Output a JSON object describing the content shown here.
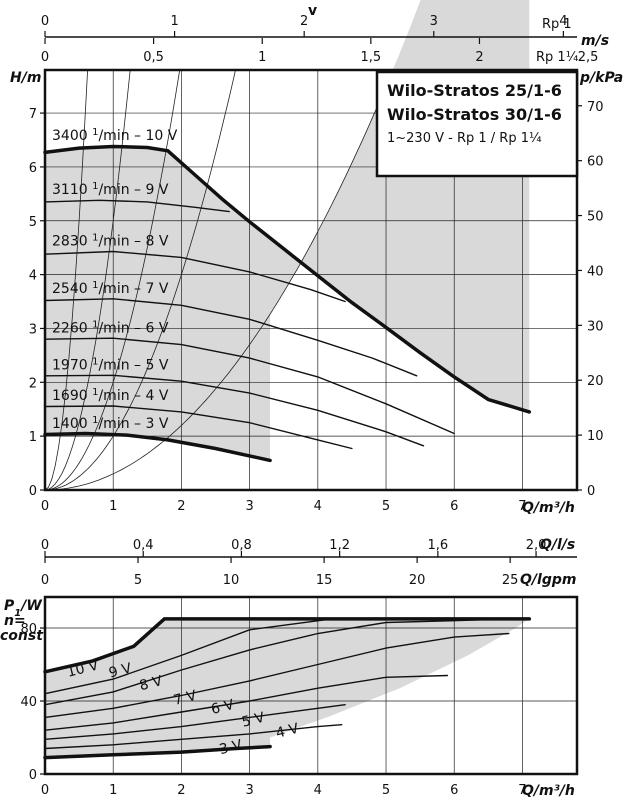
{
  "chart_data": {
    "type": "line",
    "title_box": {
      "line1": "Wilo-Stratos 25/1-6",
      "line2": "Wilo-Stratos 30/1-6",
      "line3": "1~230 V - Rp 1 / Rp 1¼"
    },
    "velocity_scale": {
      "label": "v",
      "rp1_label": "Rp 1",
      "rp1_ticks": [
        "0",
        "1",
        "2",
        "3",
        "4"
      ],
      "rp1_values": [
        0,
        1,
        2,
        3,
        4
      ],
      "rp1_max_flow": 7.6,
      "unit_label": "m/s",
      "rp114_label": "Rp 1¼",
      "rp114_ticks": [
        "0",
        "0,5",
        "1",
        "1,5",
        "2",
        "2,5"
      ],
      "rp114_values": [
        0,
        0.5,
        1,
        1.5,
        2,
        2.5
      ],
      "rp114_max_flow": 9.75
    },
    "head_chart": {
      "ylabel": "H/m",
      "y2label": "p/kPa",
      "xlabel": "Q/m³/h",
      "xlim": [
        0,
        7.8
      ],
      "ylim": [
        0,
        7.8
      ],
      "x_ticks": [
        "0",
        "1",
        "2",
        "3",
        "4",
        "5",
        "6",
        "7"
      ],
      "y_ticks": [
        "0",
        "1",
        "2",
        "3",
        "4",
        "5",
        "6",
        "7"
      ],
      "y2_ticks": [
        "0",
        "10",
        "20",
        "30",
        "40",
        "50",
        "60",
        "70"
      ],
      "y2_ratio_kpa_per_m": 9.81,
      "series": [
        {
          "name": "3400 1/min - 10 V",
          "label_main": "3400 ",
          "label_sup": "1",
          "label_rest": "/min – 10 V",
          "thick": true,
          "points": [
            [
              0,
              6.27
            ],
            [
              0.5,
              6.35
            ],
            [
              1,
              6.38
            ],
            [
              1.5,
              6.36
            ],
            [
              1.8,
              6.3
            ],
            [
              2.2,
              5.85
            ],
            [
              2.6,
              5.4
            ],
            [
              3.0,
              4.98
            ],
            [
              3.5,
              4.48
            ],
            [
              4.0,
              3.98
            ],
            [
              4.5,
              3.48
            ],
            [
              5.0,
              3.02
            ],
            [
              5.5,
              2.55
            ],
            [
              6.0,
              2.1
            ],
            [
              6.5,
              1.68
            ],
            [
              7.1,
              1.45
            ]
          ]
        },
        {
          "name": "3110 1/min - 9 V",
          "label_main": "3110 ",
          "label_sup": "1",
          "label_rest": "/min – 9 V",
          "thick": false,
          "points": [
            [
              0,
              5.35
            ],
            [
              0.8,
              5.38
            ],
            [
              1.5,
              5.35
            ],
            [
              2.2,
              5.25
            ],
            [
              2.7,
              5.17
            ]
          ]
        },
        {
          "name": "2830 1/min - 8 V",
          "label_main": "2830 ",
          "label_sup": "1",
          "label_rest": "/min – 8 V",
          "thick": false,
          "points": [
            [
              0,
              4.38
            ],
            [
              1,
              4.43
            ],
            [
              2,
              4.32
            ],
            [
              3,
              4.05
            ],
            [
              3.9,
              3.72
            ],
            [
              4.4,
              3.5
            ]
          ]
        },
        {
          "name": "2540 1/min - 7 V",
          "label_main": "2540 ",
          "label_sup": "1",
          "label_rest": "/min – 7 V",
          "thick": false,
          "points": [
            [
              0,
              3.52
            ],
            [
              1,
              3.55
            ],
            [
              2,
              3.43
            ],
            [
              3,
              3.17
            ],
            [
              4,
              2.78
            ],
            [
              4.8,
              2.45
            ],
            [
              5.45,
              2.12
            ]
          ]
        },
        {
          "name": "2260 1/min - 6 V",
          "label_main": "2260 ",
          "label_sup": "1",
          "label_rest": "/min – 6 V",
          "thick": false,
          "points": [
            [
              0,
              2.8
            ],
            [
              1,
              2.82
            ],
            [
              2,
              2.7
            ],
            [
              3,
              2.45
            ],
            [
              4,
              2.1
            ],
            [
              5,
              1.6
            ],
            [
              6,
              1.05
            ]
          ]
        },
        {
          "name": "1970 1/min - 5 V",
          "label_main": "1970 ",
          "label_sup": "1",
          "label_rest": "/min – 5 V",
          "thick": false,
          "points": [
            [
              0,
              2.12
            ],
            [
              1,
              2.13
            ],
            [
              2,
              2.02
            ],
            [
              3,
              1.8
            ],
            [
              4,
              1.48
            ],
            [
              5,
              1.08
            ],
            [
              5.55,
              0.82
            ]
          ]
        },
        {
          "name": "1690 1/min - 4 V",
          "label_main": "1690 ",
          "label_sup": "1",
          "label_rest": "/min – 4 V",
          "thick": false,
          "points": [
            [
              0,
              1.55
            ],
            [
              1,
              1.56
            ],
            [
              2,
              1.45
            ],
            [
              3,
              1.25
            ],
            [
              4,
              0.93
            ],
            [
              4.5,
              0.77
            ]
          ]
        },
        {
          "name": "1400 1/min - 3 V",
          "label_main": "1400 ",
          "label_sup": "1",
          "label_rest": "/min – 3 V",
          "thick": true,
          "points": [
            [
              0,
              1.03
            ],
            [
              0.6,
              1.05
            ],
            [
              1.2,
              1.02
            ],
            [
              1.8,
              0.93
            ],
            [
              2.5,
              0.77
            ],
            [
              3.3,
              0.55
            ]
          ]
        }
      ],
      "system_curve_coefficients": [
        0.3,
        1.0,
        2.0,
        5.0,
        20.0
      ],
      "lower_bound_coefficient": 0.3
    },
    "flow_scales": {
      "ls_label": "Q/l/s",
      "ls_ticks": [
        "0",
        "0,4",
        "0,8",
        "1,2",
        "1,6",
        "2,0"
      ],
      "ls_values": [
        0,
        0.4,
        0.8,
        1.2,
        1.6,
        2.0
      ],
      "gpm_label": "Q/lgpm",
      "gpm_ticks": [
        "0",
        "5",
        "10",
        "15",
        "20",
        "25"
      ],
      "gpm_values": [
        0,
        5,
        10,
        15,
        20,
        25
      ]
    },
    "power_chart": {
      "ylabel_main": "P",
      "ylabel_sub": "1",
      "ylabel_unit": "/W",
      "ylabel_line2": "n=",
      "ylabel_line3": "const",
      "xlabel": "Q/m³/h",
      "xlim": [
        0,
        7.8
      ],
      "ylim": [
        0,
        97
      ],
      "x_ticks": [
        "0",
        "1",
        "2",
        "3",
        "4",
        "5",
        "6",
        "7"
      ],
      "y_ticks": [
        "0",
        "40",
        "80"
      ],
      "y_tick_values": [
        0,
        40,
        80
      ],
      "series": [
        {
          "name": "10 V",
          "thick": true,
          "points": [
            [
              0,
              56
            ],
            [
              0.7,
              62
            ],
            [
              1.3,
              70
            ],
            [
              1.75,
              85
            ],
            [
              7.1,
              85
            ]
          ],
          "label_at": [
            0.55,
            58
          ]
        },
        {
          "name": "9 V",
          "thick": false,
          "points": [
            [
              0,
              44
            ],
            [
              1,
              52
            ],
            [
              2,
              65
            ],
            [
              3,
              79
            ],
            [
              4.2,
              85
            ]
          ],
          "label_at": [
            1.1,
            57
          ]
        },
        {
          "name": "8 V",
          "thick": false,
          "points": [
            [
              0,
              38
            ],
            [
              1,
              45
            ],
            [
              2,
              57
            ],
            [
              3,
              68
            ],
            [
              4,
              77
            ],
            [
              5,
              83
            ],
            [
              6,
              84
            ],
            [
              6.8,
              85
            ]
          ],
          "label_at": [
            1.55,
            50
          ]
        },
        {
          "name": "7 V",
          "thick": false,
          "points": [
            [
              0,
              31
            ],
            [
              1,
              36
            ],
            [
              2,
              43
            ],
            [
              3,
              51
            ],
            [
              4,
              60
            ],
            [
              5,
              69
            ],
            [
              6,
              75
            ],
            [
              6.8,
              77
            ]
          ],
          "label_at": [
            2.05,
            42
          ]
        },
        {
          "name": "6 V",
          "thick": false,
          "points": [
            [
              0,
              24
            ],
            [
              1,
              28
            ],
            [
              2,
              34
            ],
            [
              3,
              40
            ],
            [
              4,
              47
            ],
            [
              5,
              53
            ],
            [
              5.9,
              54
            ]
          ],
          "label_at": [
            2.6,
            37
          ]
        },
        {
          "name": "5 V",
          "thick": false,
          "points": [
            [
              0,
              19
            ],
            [
              1,
              22
            ],
            [
              2,
              26
            ],
            [
              3,
              31
            ],
            [
              4,
              36
            ],
            [
              4.4,
              38
            ]
          ],
          "label_at": [
            3.05,
            30
          ]
        },
        {
          "name": "4 V",
          "thick": false,
          "points": [
            [
              0,
              14
            ],
            [
              1,
              16
            ],
            [
              2,
              19
            ],
            [
              3,
              22
            ],
            [
              4,
              26
            ],
            [
              4.35,
              27
            ]
          ],
          "label_at": [
            3.55,
            24
          ]
        },
        {
          "name": "3 V",
          "thick": true,
          "points": [
            [
              0,
              9
            ],
            [
              1,
              10.5
            ],
            [
              2,
              12
            ],
            [
              2.8,
              14
            ],
            [
              3.3,
              15
            ]
          ],
          "label_at": [
            2.72,
            15
          ]
        }
      ]
    }
  }
}
